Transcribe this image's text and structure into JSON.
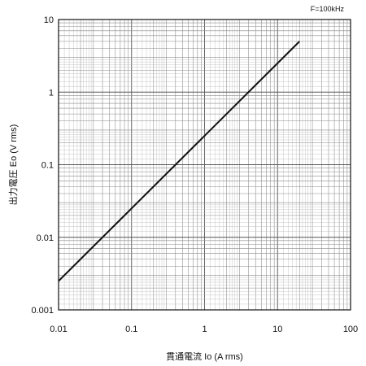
{
  "chart_data": {
    "type": "line",
    "title": "",
    "annotation": "F=100kHz",
    "xlabel": "貫通電流 Io (A rms)",
    "ylabel": "出力電圧 Eo (V rms)",
    "xscale": "log",
    "yscale": "log",
    "xlim": [
      0.01,
      100
    ],
    "ylim": [
      0.001,
      10
    ],
    "grid": true,
    "legend": "none",
    "x_ticks": [
      0.01,
      0.1,
      1,
      10,
      100
    ],
    "x_tick_labels": [
      "0.01",
      "0.1",
      "1",
      "10",
      "100"
    ],
    "y_ticks": [
      0.001,
      0.01,
      0.1,
      1,
      10
    ],
    "y_tick_labels": [
      "0.001",
      "0.01",
      "0.1",
      "1",
      "10"
    ],
    "series": [
      {
        "x": [
          0.01,
          0.1,
          1,
          10,
          20
        ],
        "y": [
          0.0025,
          0.025,
          0.25,
          2.5,
          5
        ]
      }
    ],
    "colors": {
      "line": "#111111",
      "grid": "#8a8a8a",
      "frame": "#111111"
    }
  }
}
